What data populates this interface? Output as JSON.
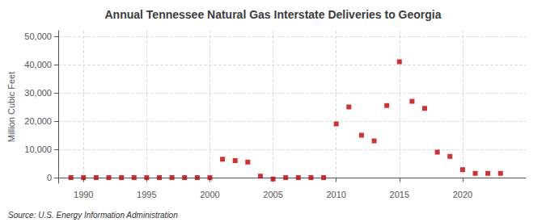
{
  "chart_data": {
    "type": "scatter",
    "title": "Annual Tennessee Natural Gas Interstate Deliveries to Georgia",
    "ylabel": "Million Cubic Feet",
    "annotations": [
      "Source: U.S. Energy Information Administration"
    ],
    "x": [
      1989,
      1990,
      1991,
      1992,
      1993,
      1994,
      1995,
      1996,
      1997,
      1998,
      1999,
      2000,
      2001,
      2002,
      2003,
      2004,
      2005,
      2006,
      2007,
      2008,
      2009,
      2010,
      2011,
      2012,
      2013,
      2014,
      2015,
      2016,
      2017,
      2018,
      2019,
      2020,
      2021,
      2022,
      2023
    ],
    "values": [
      0,
      0,
      0,
      0,
      0,
      0,
      0,
      0,
      0,
      0,
      0,
      0,
      6500,
      6000,
      5500,
      500,
      -500,
      0,
      0,
      0,
      0,
      19000,
      25000,
      15000,
      13000,
      25500,
      41000,
      27000,
      24500,
      9000,
      7500,
      2800,
      1500,
      1500,
      1500
    ],
    "color": "#c00000",
    "marker": "square",
    "xlim": [
      1988,
      2025
    ],
    "xticks": [
      1990,
      1995,
      2000,
      2005,
      2010,
      2015,
      2020
    ],
    "ylim": [
      -2000,
      52000
    ],
    "yticks": [
      0,
      {
        "value": 10000,
        "label": "10,000"
      },
      {
        "value": 20000,
        "label": "20,000"
      },
      {
        "value": 30000,
        "label": "30,000"
      },
      {
        "value": 40000,
        "label": "40,000"
      },
      {
        "value": 50000,
        "label": "50,000"
      }
    ],
    "grid": true
  }
}
